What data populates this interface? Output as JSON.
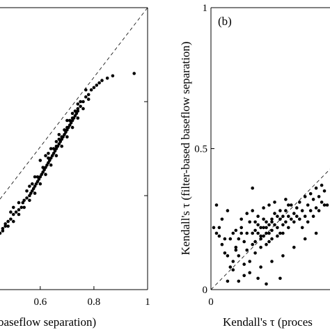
{
  "chart_data": [
    {
      "type": "scatter",
      "panel_label": "",
      "xlabel": "baseflow separation)",
      "ylabel": "",
      "xlim": [
        0.45,
        1.0
      ],
      "ylim": [
        0.4,
        1.0
      ],
      "x_ticks": [
        0.6,
        0.8,
        1.0
      ],
      "x_tick_labels": [
        "0.6",
        "0.8",
        "1"
      ],
      "y_ticks": [
        0.6,
        0.8
      ],
      "reference_line": "1:1 dashed",
      "points": [
        [
          0.46,
          0.53
        ],
        [
          0.47,
          0.535
        ],
        [
          0.48,
          0.545
        ],
        [
          0.49,
          0.55
        ],
        [
          0.5,
          0.56
        ],
        [
          0.51,
          0.565
        ],
        [
          0.52,
          0.57
        ],
        [
          0.53,
          0.575
        ],
        [
          0.535,
          0.585
        ],
        [
          0.54,
          0.59
        ],
        [
          0.55,
          0.595
        ],
        [
          0.56,
          0.6
        ],
        [
          0.565,
          0.605
        ],
        [
          0.57,
          0.61
        ],
        [
          0.575,
          0.615
        ],
        [
          0.58,
          0.62
        ],
        [
          0.585,
          0.625
        ],
        [
          0.59,
          0.63
        ],
        [
          0.595,
          0.635
        ],
        [
          0.6,
          0.64
        ],
        [
          0.605,
          0.645
        ],
        [
          0.61,
          0.65
        ],
        [
          0.615,
          0.655
        ],
        [
          0.62,
          0.66
        ],
        [
          0.625,
          0.665
        ],
        [
          0.63,
          0.67
        ],
        [
          0.635,
          0.675
        ],
        [
          0.64,
          0.68
        ],
        [
          0.645,
          0.685
        ],
        [
          0.65,
          0.69
        ],
        [
          0.655,
          0.695
        ],
        [
          0.66,
          0.7
        ],
        [
          0.665,
          0.705
        ],
        [
          0.67,
          0.71
        ],
        [
          0.675,
          0.715
        ],
        [
          0.68,
          0.72
        ],
        [
          0.685,
          0.725
        ],
        [
          0.69,
          0.73
        ],
        [
          0.695,
          0.735
        ],
        [
          0.7,
          0.74
        ],
        [
          0.705,
          0.745
        ],
        [
          0.71,
          0.75
        ],
        [
          0.715,
          0.755
        ],
        [
          0.72,
          0.76
        ],
        [
          0.725,
          0.765
        ],
        [
          0.73,
          0.77
        ],
        [
          0.735,
          0.775
        ],
        [
          0.74,
          0.78
        ],
        [
          0.75,
          0.79
        ],
        [
          0.76,
          0.8
        ],
        [
          0.77,
          0.81
        ],
        [
          0.78,
          0.815
        ],
        [
          0.79,
          0.825
        ],
        [
          0.8,
          0.83
        ],
        [
          0.81,
          0.835
        ],
        [
          0.82,
          0.84
        ],
        [
          0.83,
          0.845
        ],
        [
          0.85,
          0.85
        ],
        [
          0.87,
          0.855
        ],
        [
          0.95,
          0.86
        ],
        [
          0.48,
          0.535
        ],
        [
          0.5,
          0.545
        ],
        [
          0.52,
          0.56
        ],
        [
          0.54,
          0.575
        ],
        [
          0.56,
          0.59
        ],
        [
          0.58,
          0.605
        ],
        [
          0.6,
          0.625
        ],
        [
          0.62,
          0.645
        ],
        [
          0.64,
          0.665
        ],
        [
          0.66,
          0.685
        ],
        [
          0.68,
          0.705
        ],
        [
          0.7,
          0.725
        ],
        [
          0.72,
          0.745
        ],
        [
          0.74,
          0.765
        ],
        [
          0.76,
          0.785
        ],
        [
          0.78,
          0.805
        ],
        [
          0.55,
          0.61
        ],
        [
          0.57,
          0.625
        ],
        [
          0.59,
          0.64
        ],
        [
          0.61,
          0.66
        ],
        [
          0.63,
          0.68
        ],
        [
          0.65,
          0.7
        ],
        [
          0.67,
          0.72
        ],
        [
          0.69,
          0.74
        ],
        [
          0.71,
          0.76
        ],
        [
          0.73,
          0.78
        ],
        [
          0.75,
          0.8
        ],
        [
          0.6,
          0.675
        ],
        [
          0.62,
          0.685
        ],
        [
          0.64,
          0.7
        ],
        [
          0.66,
          0.715
        ],
        [
          0.7,
          0.76
        ],
        [
          0.72,
          0.775
        ],
        [
          0.74,
          0.795
        ],
        [
          0.45,
          0.52
        ],
        [
          0.46,
          0.525
        ],
        [
          0.47,
          0.54
        ],
        [
          0.63,
          0.69
        ],
        [
          0.67,
          0.73
        ],
        [
          0.77,
          0.825
        ],
        [
          0.58,
          0.64
        ],
        [
          0.56,
          0.62
        ],
        [
          0.52,
          0.585
        ],
        [
          0.5,
          0.575
        ],
        [
          0.49,
          0.565
        ],
        [
          0.66,
          0.705
        ],
        [
          0.68,
          0.725
        ],
        [
          0.7,
          0.745
        ],
        [
          0.72,
          0.765
        ],
        [
          0.74,
          0.785
        ]
      ]
    },
    {
      "type": "scatter",
      "panel_label": "(b)",
      "xlabel": "Kendall's τ (proces",
      "ylabel": "Kendall's τ (filter-based baseflow separation)",
      "xlim": [
        0,
        0.43
      ],
      "ylim": [
        0,
        1
      ],
      "x_ticks": [
        0
      ],
      "x_tick_labels": [
        "0"
      ],
      "y_ticks": [
        0,
        0.5,
        1
      ],
      "y_tick_labels": [
        "0",
        "0.5",
        "1"
      ],
      "reference_line": "1:1 dashed",
      "points": [
        [
          0.01,
          0.22
        ],
        [
          0.02,
          0.2
        ],
        [
          0.03,
          0.19
        ],
        [
          0.04,
          0.16
        ],
        [
          0.05,
          0.18
        ],
        [
          0.06,
          0.12
        ],
        [
          0.07,
          0.08
        ],
        [
          0.08,
          0.2
        ],
        [
          0.09,
          0.15
        ],
        [
          0.1,
          0.18
        ],
        [
          0.11,
          0.22
        ],
        [
          0.12,
          0.17
        ],
        [
          0.13,
          0.2
        ],
        [
          0.14,
          0.24
        ],
        [
          0.15,
          0.16
        ],
        [
          0.16,
          0.21
        ],
        [
          0.17,
          0.23
        ],
        [
          0.18,
          0.19
        ],
        [
          0.19,
          0.25
        ],
        [
          0.2,
          0.22
        ],
        [
          0.21,
          0.2
        ],
        [
          0.22,
          0.24
        ],
        [
          0.23,
          0.27
        ],
        [
          0.24,
          0.22
        ],
        [
          0.25,
          0.25
        ],
        [
          0.26,
          0.23
        ],
        [
          0.27,
          0.28
        ],
        [
          0.28,
          0.26
        ],
        [
          0.29,
          0.3
        ],
        [
          0.3,
          0.27
        ],
        [
          0.31,
          0.29
        ],
        [
          0.32,
          0.31
        ],
        [
          0.33,
          0.28
        ],
        [
          0.34,
          0.33
        ],
        [
          0.35,
          0.3
        ],
        [
          0.36,
          0.34
        ],
        [
          0.37,
          0.32
        ],
        [
          0.38,
          0.36
        ],
        [
          0.39,
          0.33
        ],
        [
          0.4,
          0.37
        ],
        [
          0.41,
          0.35
        ],
        [
          0.42,
          0.3
        ],
        [
          0.02,
          0.3
        ],
        [
          0.03,
          0.22
        ],
        [
          0.05,
          0.13
        ],
        [
          0.08,
          0.1
        ],
        [
          0.1,
          0.12
        ],
        [
          0.12,
          0.09
        ],
        [
          0.14,
          0.1
        ],
        [
          0.16,
          0.13
        ],
        [
          0.18,
          0.15
        ],
        [
          0.2,
          0.16
        ],
        [
          0.22,
          0.18
        ],
        [
          0.24,
          0.19
        ],
        [
          0.26,
          0.2
        ],
        [
          0.28,
          0.22
        ],
        [
          0.3,
          0.24
        ],
        [
          0.32,
          0.25
        ],
        [
          0.34,
          0.26
        ],
        [
          0.36,
          0.28
        ],
        [
          0.38,
          0.29
        ],
        [
          0.4,
          0.31
        ],
        [
          0.07,
          0.18
        ],
        [
          0.09,
          0.21
        ],
        [
          0.11,
          0.25
        ],
        [
          0.13,
          0.27
        ],
        [
          0.15,
          0.28
        ],
        [
          0.17,
          0.26
        ],
        [
          0.19,
          0.29
        ],
        [
          0.21,
          0.3
        ],
        [
          0.23,
          0.31
        ],
        [
          0.25,
          0.28
        ],
        [
          0.27,
          0.32
        ],
        [
          0.15,
          0.36
        ],
        [
          0.08,
          0.07
        ],
        [
          0.12,
          0.05
        ],
        [
          0.17,
          0.04
        ],
        [
          0.2,
          0.02
        ],
        [
          0.25,
          0.04
        ],
        [
          0.06,
          0.03
        ],
        [
          0.1,
          0.03
        ],
        [
          0.14,
          0.06
        ],
        [
          0.18,
          0.08
        ],
        [
          0.22,
          0.1
        ],
        [
          0.26,
          0.12
        ],
        [
          0.3,
          0.15
        ],
        [
          0.34,
          0.18
        ],
        [
          0.38,
          0.2
        ],
        [
          0.04,
          0.25
        ],
        [
          0.06,
          0.28
        ],
        [
          0.09,
          0.14
        ],
        [
          0.11,
          0.2
        ],
        [
          0.13,
          0.14
        ],
        [
          0.15,
          0.2
        ],
        [
          0.16,
          0.17
        ],
        [
          0.18,
          0.22
        ],
        [
          0.19,
          0.19
        ],
        [
          0.2,
          0.24
        ],
        [
          0.21,
          0.17
        ],
        [
          0.22,
          0.21
        ],
        [
          0.23,
          0.23
        ],
        [
          0.24,
          0.26
        ],
        [
          0.25,
          0.2
        ],
        [
          0.26,
          0.26
        ],
        [
          0.27,
          0.24
        ],
        [
          0.28,
          0.3
        ],
        [
          0.29,
          0.25
        ],
        [
          0.31,
          0.26
        ],
        [
          0.33,
          0.22
        ],
        [
          0.35,
          0.24
        ],
        [
          0.37,
          0.26
        ],
        [
          0.39,
          0.28
        ],
        [
          0.41,
          0.3
        ],
        [
          0.16,
          0.24
        ],
        [
          0.17,
          0.2
        ],
        [
          0.19,
          0.22
        ],
        [
          0.2,
          0.2
        ],
        [
          0.21,
          0.23
        ],
        [
          0.22,
          0.25
        ],
        [
          0.18,
          0.18
        ]
      ]
    }
  ]
}
